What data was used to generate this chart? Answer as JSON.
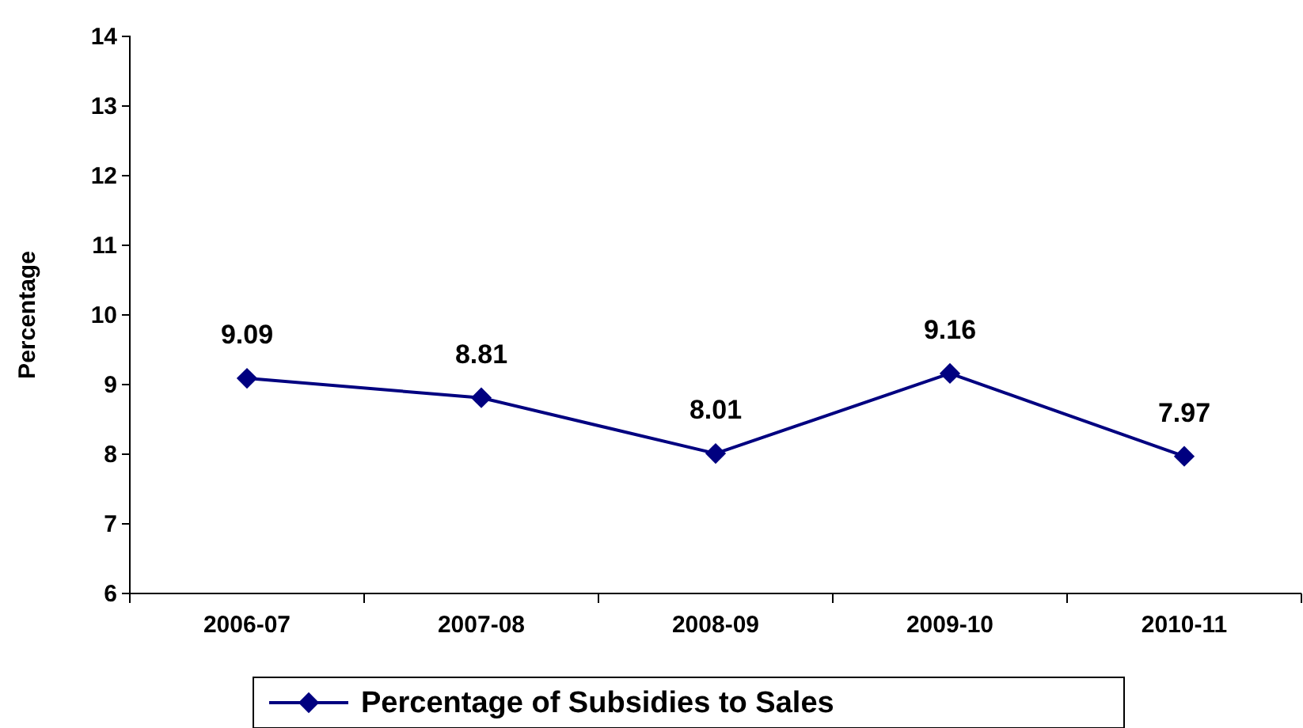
{
  "chart_data": {
    "type": "line",
    "ylabel": "Percentage",
    "categories": [
      "2006-07",
      "2007-08",
      "2008-09",
      "2009-10",
      "2010-11"
    ],
    "series": [
      {
        "name": "Percentage of Subsidies to Sales",
        "color": "#000080",
        "values": [
          9.09,
          8.81,
          8.01,
          9.16,
          7.97
        ]
      }
    ],
    "ylim": [
      6,
      14
    ],
    "yticks": [
      6,
      7,
      8,
      9,
      10,
      11,
      12,
      13,
      14
    ],
    "data_labels": true,
    "grid": false,
    "legend": "bottom",
    "marker": "diamond",
    "line_style": "solid"
  }
}
